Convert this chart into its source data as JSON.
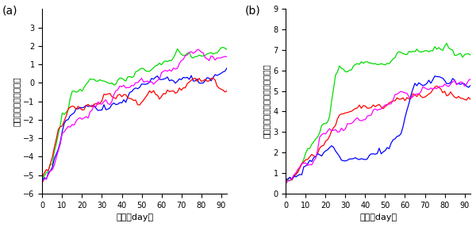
{
  "title_a": "(a)",
  "title_b": "(b)",
  "xlabel": "時間（day）",
  "ylabel_a": "セフィキシムの耗性能",
  "ylabel_b": "クロラムフェニコールへの耗性能",
  "xlim": [
    0,
    93
  ],
  "ylim_a": [
    -6,
    4
  ],
  "ylim_b": [
    0,
    9
  ],
  "yticks_a": [
    -6,
    -5,
    -4,
    -3,
    -2,
    -1,
    0,
    1,
    2,
    3
  ],
  "yticks_b": [
    0,
    1,
    2,
    3,
    4,
    5,
    6,
    7,
    8,
    9
  ],
  "xticks": [
    0,
    10,
    20,
    30,
    40,
    50,
    60,
    70,
    80,
    90
  ],
  "color_green": "#00dd00",
  "color_blue": "#0000ff",
  "color_red": "#ff0000",
  "color_magenta": "#ff00ff",
  "figsize": [
    6.0,
    2.86
  ],
  "dpi": 100
}
